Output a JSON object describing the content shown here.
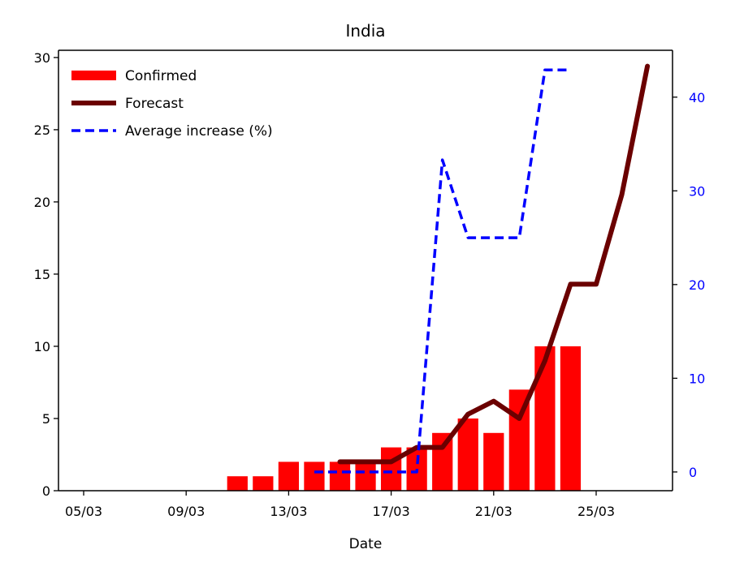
{
  "chart_data": {
    "type": "bar",
    "title": "India",
    "xlabel": "Date",
    "ylabel": "",
    "ylabel_right": "",
    "x": [
      "05/03",
      "06/03",
      "07/03",
      "08/03",
      "09/03",
      "10/03",
      "11/03",
      "12/03",
      "13/03",
      "14/03",
      "15/03",
      "16/03",
      "17/03",
      "18/03",
      "19/03",
      "20/03",
      "21/03",
      "22/03",
      "23/03",
      "24/03",
      "25/03",
      "26/03",
      "27/03"
    ],
    "xticks": [
      "05/03",
      "09/03",
      "13/03",
      "17/03",
      "21/03",
      "25/03"
    ],
    "ylim": [
      0,
      30.5
    ],
    "yticks": [
      0,
      5,
      10,
      15,
      20,
      25,
      30
    ],
    "ylim_right": [
      -2,
      45
    ],
    "yticks_right": [
      0,
      10,
      20,
      30,
      40
    ],
    "legend_position": "top-left",
    "grid": false,
    "series": [
      {
        "name": "Confirmed",
        "kind": "bar",
        "axis": "left",
        "color": "#ff0000",
        "x": [
          "11/03",
          "12/03",
          "13/03",
          "14/03",
          "15/03",
          "16/03",
          "17/03",
          "18/03",
          "19/03",
          "20/03",
          "21/03",
          "22/03",
          "23/03",
          "24/03"
        ],
        "values": [
          1,
          1,
          2,
          2,
          2,
          2,
          3,
          3,
          4,
          5,
          4,
          7,
          10,
          10
        ]
      },
      {
        "name": "Forecast",
        "kind": "line",
        "axis": "left",
        "color": "#6b0000",
        "x": [
          "15/03",
          "16/03",
          "17/03",
          "18/03",
          "19/03",
          "20/03",
          "21/03",
          "22/03",
          "23/03",
          "24/03",
          "25/03",
          "26/03",
          "27/03"
        ],
        "values": [
          2,
          2,
          2,
          3,
          3,
          5.3,
          6.2,
          5,
          9,
          14.3,
          14.3,
          20.5,
          29.4
        ]
      },
      {
        "name": "Average increase (%)",
        "kind": "dashed-line",
        "axis": "right",
        "color": "#0000ff",
        "x": [
          "14/03",
          "15/03",
          "16/03",
          "17/03",
          "18/03",
          "19/03",
          "20/03",
          "21/03",
          "22/03",
          "23/03",
          "24/03"
        ],
        "values": [
          0,
          0,
          0,
          0,
          0,
          33.3,
          25,
          25,
          25,
          42.9,
          42.9
        ]
      }
    ]
  }
}
